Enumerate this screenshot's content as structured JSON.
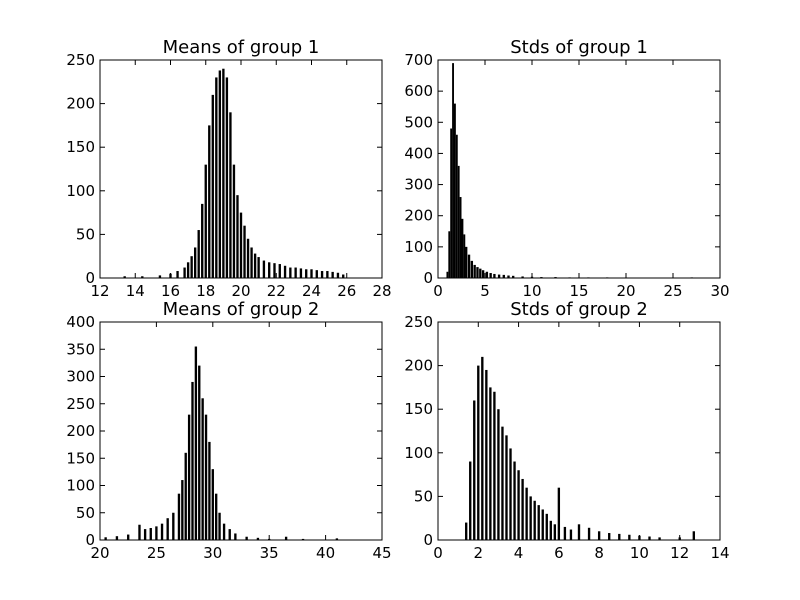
{
  "chart_data": [
    {
      "type": "histogram",
      "title": "Means of group 1",
      "xlim": [
        12,
        28
      ],
      "ylim": [
        0,
        250
      ],
      "xticks": [
        12,
        14,
        16,
        18,
        20,
        22,
        24,
        26,
        28
      ],
      "yticks": [
        0,
        50,
        100,
        150,
        200,
        250
      ],
      "xtick_labels": [
        "12",
        "14",
        "16",
        "18",
        "20",
        "22",
        "24",
        "26",
        "28"
      ],
      "ytick_labels": [
        "0",
        "50",
        "100",
        "150",
        "200",
        "250"
      ],
      "grid": false,
      "color": "#000000",
      "bins": {
        "x": [
          13.4,
          14.4,
          15.4,
          16.0,
          16.4,
          16.8,
          17.0,
          17.2,
          17.4,
          17.6,
          17.8,
          18.0,
          18.2,
          18.4,
          18.6,
          18.8,
          19.0,
          19.2,
          19.4,
          19.6,
          19.8,
          20.0,
          20.2,
          20.4,
          20.6,
          20.8,
          21.0,
          21.3,
          21.6,
          21.9,
          22.2,
          22.5,
          22.8,
          23.1,
          23.4,
          23.7,
          24.0,
          24.3,
          24.6,
          24.9,
          25.2,
          25.5,
          25.8
        ],
        "counts": [
          2,
          2,
          3,
          5,
          8,
          12,
          18,
          25,
          35,
          55,
          85,
          130,
          175,
          210,
          230,
          238,
          240,
          230,
          190,
          130,
          95,
          75,
          60,
          45,
          35,
          28,
          24,
          20,
          18,
          17,
          16,
          14,
          12,
          12,
          11,
          10,
          10,
          9,
          8,
          8,
          7,
          6,
          4
        ]
      }
    },
    {
      "type": "histogram",
      "title": "Stds of group 1",
      "xlim": [
        0,
        30
      ],
      "ylim": [
        0,
        700
      ],
      "xticks": [
        0,
        5,
        10,
        15,
        20,
        25,
        30
      ],
      "yticks": [
        0,
        100,
        200,
        300,
        400,
        500,
        600,
        700
      ],
      "xtick_labels": [
        "0",
        "5",
        "10",
        "15",
        "20",
        "25",
        "30"
      ],
      "ytick_labels": [
        "0",
        "100",
        "200",
        "300",
        "400",
        "500",
        "600",
        "700"
      ],
      "grid": false,
      "color": "#000000",
      "bins": {
        "x": [
          1.0,
          1.2,
          1.4,
          1.6,
          1.8,
          2.0,
          2.2,
          2.4,
          2.6,
          2.8,
          3.0,
          3.3,
          3.6,
          3.9,
          4.2,
          4.5,
          4.8,
          5.2,
          5.6,
          6.0,
          6.5,
          7.0,
          7.5,
          8.0,
          9.0,
          10.0,
          11.0,
          12.5,
          14.0,
          16.0,
          18.0,
          21.0,
          24.0,
          27.0
        ],
        "counts": [
          20,
          150,
          480,
          690,
          560,
          460,
          360,
          260,
          190,
          140,
          100,
          75,
          55,
          42,
          35,
          30,
          25,
          20,
          16,
          13,
          11,
          10,
          8,
          7,
          5,
          4,
          3,
          3,
          2,
          2,
          2,
          1,
          1,
          2
        ]
      }
    },
    {
      "type": "histogram",
      "title": "Means of group 2",
      "xlim": [
        20,
        45
      ],
      "ylim": [
        0,
        400
      ],
      "xticks": [
        20,
        25,
        30,
        35,
        40,
        45
      ],
      "yticks": [
        0,
        50,
        100,
        150,
        200,
        250,
        300,
        350,
        400
      ],
      "xtick_labels": [
        "20",
        "25",
        "30",
        "35",
        "40",
        "45"
      ],
      "ytick_labels": [
        "0",
        "50",
        "100",
        "150",
        "200",
        "250",
        "300",
        "350",
        "400"
      ],
      "grid": false,
      "color": "#000000",
      "bins": {
        "x": [
          20.5,
          21.5,
          22.5,
          23.5,
          24.0,
          24.5,
          25.0,
          25.5,
          26.0,
          26.5,
          27.0,
          27.3,
          27.6,
          27.9,
          28.2,
          28.5,
          28.8,
          29.1,
          29.4,
          29.7,
          30.0,
          30.3,
          30.6,
          31.0,
          31.5,
          32.0,
          33.0,
          34.0,
          35.0,
          36.5,
          38.0,
          41.0
        ],
        "counts": [
          5,
          7,
          10,
          28,
          20,
          22,
          25,
          30,
          40,
          50,
          85,
          110,
          160,
          230,
          290,
          355,
          320,
          260,
          230,
          180,
          130,
          85,
          50,
          30,
          20,
          12,
          6,
          4,
          2,
          6,
          2,
          3
        ]
      }
    },
    {
      "type": "histogram",
      "title": "Stds of group 2",
      "xlim": [
        0,
        14
      ],
      "ylim": [
        0,
        250
      ],
      "xticks": [
        0,
        2,
        4,
        6,
        8,
        10,
        12,
        14
      ],
      "yticks": [
        0,
        50,
        100,
        150,
        200,
        250
      ],
      "xtick_labels": [
        "0",
        "2",
        "4",
        "6",
        "8",
        "10",
        "12",
        "14"
      ],
      "ytick_labels": [
        "0",
        "50",
        "100",
        "150",
        "200",
        "250"
      ],
      "grid": false,
      "color": "#000000",
      "bins": {
        "x": [
          1.4,
          1.6,
          1.8,
          2.0,
          2.2,
          2.4,
          2.6,
          2.8,
          3.0,
          3.2,
          3.4,
          3.6,
          3.8,
          4.0,
          4.2,
          4.4,
          4.6,
          4.8,
          5.0,
          5.2,
          5.4,
          5.6,
          5.8,
          6.0,
          6.3,
          6.6,
          7.0,
          7.5,
          8.0,
          8.5,
          9.0,
          9.5,
          10.0,
          10.5,
          11.0,
          12.0,
          12.7
        ],
        "counts": [
          20,
          90,
          160,
          200,
          210,
          195,
          175,
          170,
          150,
          130,
          120,
          105,
          90,
          80,
          70,
          60,
          50,
          45,
          40,
          35,
          30,
          22,
          18,
          60,
          15,
          12,
          18,
          14,
          10,
          8,
          7,
          6,
          5,
          4,
          3,
          3,
          10
        ]
      }
    }
  ]
}
